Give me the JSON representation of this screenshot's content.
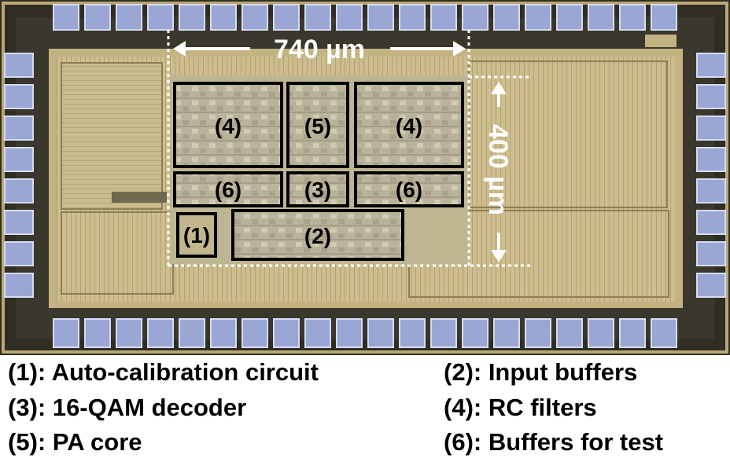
{
  "dimensions": {
    "width_label": "740 µm",
    "height_label": "400 µm"
  },
  "blocks": [
    {
      "id": "rc-filters-left",
      "label": "(4)"
    },
    {
      "id": "pa-core",
      "label": "(5)"
    },
    {
      "id": "rc-filters-right",
      "label": "(4)"
    },
    {
      "id": "buffers-test-left",
      "label": "(6)"
    },
    {
      "id": "qam-decoder",
      "label": "(3)"
    },
    {
      "id": "buffers-test-right",
      "label": "(6)"
    },
    {
      "id": "auto-calibration",
      "label": "(1)"
    },
    {
      "id": "input-buffers",
      "label": "(2)"
    }
  ],
  "legend": [
    "(1): Auto-calibration circuit",
    "(2): Input buffers",
    "(3): 16-QAM decoder",
    "(4): RC filters",
    "(5): PA core",
    "(6): Buffers for test"
  ],
  "colors": {
    "die_frame": "#2b2a22",
    "core_fill": "#c9b98a",
    "pad_fill": "#9aa6d4",
    "block_outline": "#000000",
    "dimension_lines": "#ffffff"
  }
}
